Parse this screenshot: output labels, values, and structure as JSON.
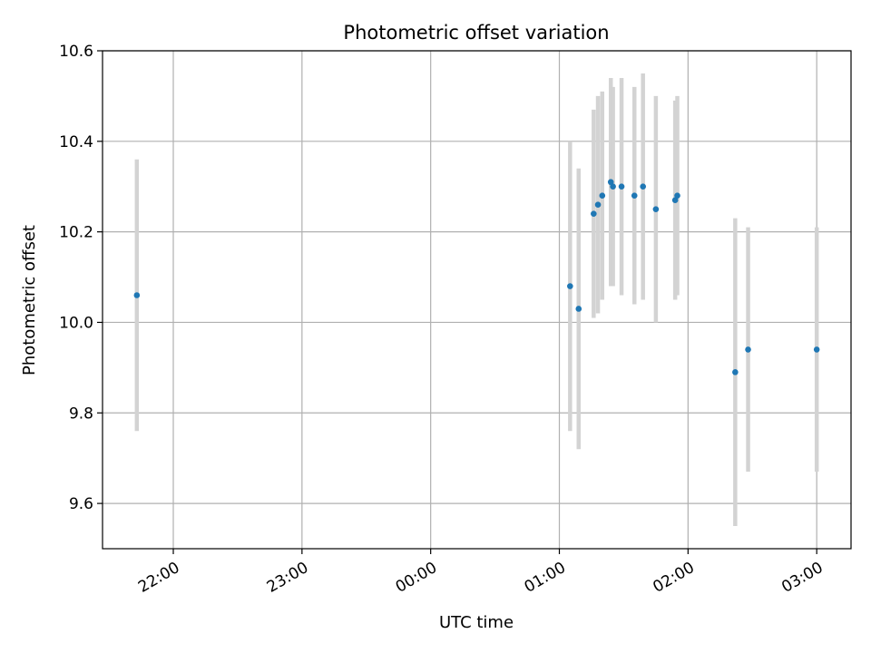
{
  "chart_data": {
    "type": "scatter",
    "title": "Photometric offset variation",
    "xlabel": "UTC time",
    "ylabel": "Photometric offset",
    "xlim": [
      "21:27",
      "03:16"
    ],
    "ylim": [
      9.5,
      10.6
    ],
    "grid": true,
    "x_ticks": [
      "22:00",
      "23:00",
      "00:00",
      "01:00",
      "02:00",
      "03:00"
    ],
    "y_ticks": [
      "9.6",
      "9.8",
      "10.0",
      "10.2",
      "10.4",
      "10.6"
    ],
    "error_bar_color": "#d3d3d3",
    "marker_color": "#1f77b4",
    "points": [
      {
        "time": "21:43",
        "y": 10.06,
        "err": 0.3
      },
      {
        "time": "01:05",
        "y": 10.08,
        "err": 0.32
      },
      {
        "time": "01:09",
        "y": 10.03,
        "err": 0.31
      },
      {
        "time": "01:16",
        "y": 10.24,
        "err": 0.23
      },
      {
        "time": "01:18",
        "y": 10.26,
        "err": 0.24
      },
      {
        "time": "01:20",
        "y": 10.28,
        "err": 0.23
      },
      {
        "time": "01:24",
        "y": 10.31,
        "err": 0.23
      },
      {
        "time": "01:25",
        "y": 10.3,
        "err": 0.22
      },
      {
        "time": "01:29",
        "y": 10.3,
        "err": 0.24
      },
      {
        "time": "01:35",
        "y": 10.28,
        "err": 0.24
      },
      {
        "time": "01:39",
        "y": 10.3,
        "err": 0.25
      },
      {
        "time": "01:45",
        "y": 10.25,
        "err": 0.25
      },
      {
        "time": "01:54",
        "y": 10.27,
        "err": 0.22
      },
      {
        "time": "01:55",
        "y": 10.28,
        "err": 0.22
      },
      {
        "time": "02:22",
        "y": 9.89,
        "err": 0.34
      },
      {
        "time": "02:28",
        "y": 9.94,
        "err": 0.27
      },
      {
        "time": "03:00",
        "y": 9.94,
        "err": 0.27
      }
    ]
  }
}
